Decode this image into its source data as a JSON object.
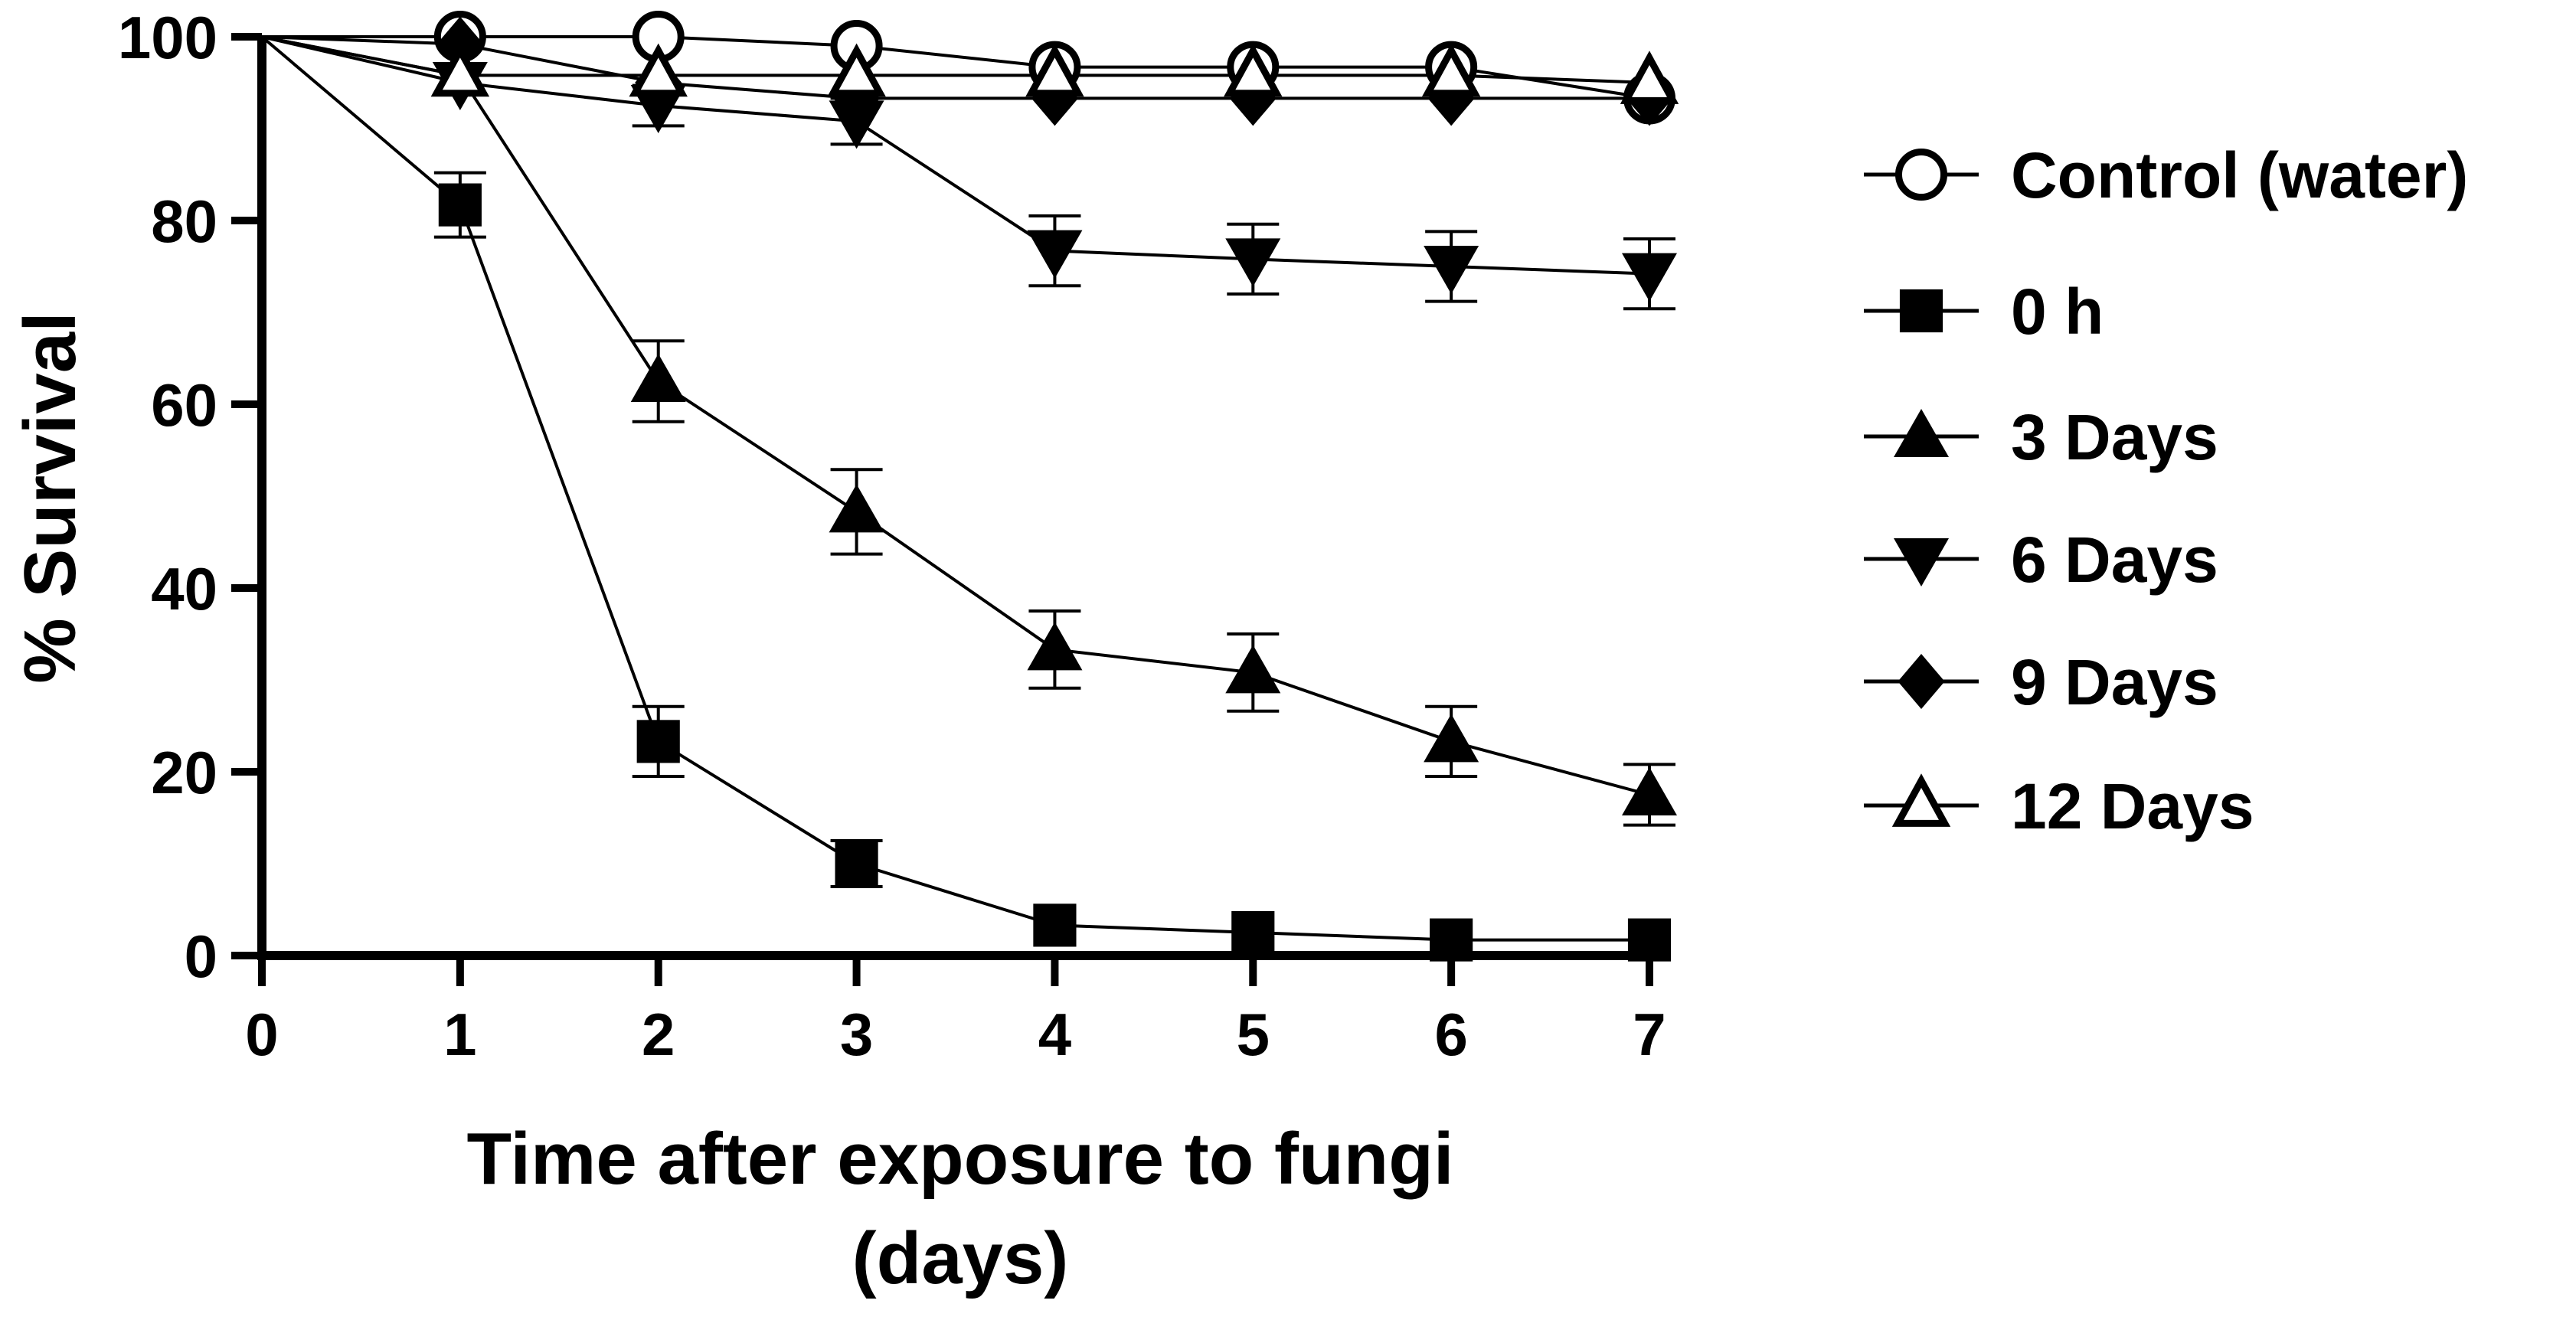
{
  "chart_data": {
    "type": "line",
    "title": "",
    "xlabel": [
      "Time after exposure to fungi",
      "(days)"
    ],
    "ylabel": "% Survival",
    "xlim": [
      0,
      7
    ],
    "ylim": [
      0,
      100
    ],
    "x_ticks": [
      "0",
      "1",
      "2",
      "3",
      "4",
      "5",
      "6",
      "7"
    ],
    "y_ticks": [
      "0",
      "20",
      "40",
      "60",
      "80",
      "100"
    ],
    "grid": false,
    "legend_position": "right",
    "x": [
      0,
      1,
      2,
      3,
      4,
      5,
      6,
      7
    ],
    "series": [
      {
        "name": "Control (water)",
        "marker": "open-circle",
        "values": [
          100,
          100,
          100,
          99,
          96.7,
          96.7,
          96.7,
          93.3
        ],
        "errors": [
          0,
          0,
          0,
          0,
          0,
          0,
          0,
          0
        ]
      },
      {
        "name": "0 h",
        "marker": "filled-square",
        "values": [
          100,
          81.7,
          23.3,
          10,
          3.3,
          2.5,
          1.7,
          1.7
        ],
        "errors": [
          0,
          3.5,
          3.8,
          2.5,
          0,
          0,
          0,
          0
        ]
      },
      {
        "name": "3 Days",
        "marker": "filled-triangle-up",
        "values": [
          100,
          95.8,
          62.5,
          48.3,
          33.3,
          30.8,
          23.3,
          17.5
        ],
        "errors": [
          0,
          0,
          4.4,
          4.6,
          4.2,
          4.2,
          3.8,
          3.3
        ]
      },
      {
        "name": "6 Days",
        "marker": "filled-triangle-down",
        "values": [
          100,
          95,
          92.5,
          90.8,
          76.7,
          75.8,
          75,
          74.2
        ],
        "errors": [
          0,
          0,
          2.2,
          2.5,
          3.8,
          3.8,
          3.8,
          3.8
        ]
      },
      {
        "name": "9 Days",
        "marker": "filled-diamond",
        "values": [
          100,
          99.2,
          95,
          93.3,
          93.3,
          93.3,
          93.3,
          93.3
        ],
        "errors": [
          0,
          0,
          0,
          0,
          0,
          0,
          0,
          0
        ]
      },
      {
        "name": "12 Days",
        "marker": "open-triangle-up",
        "values": [
          100,
          95.8,
          95.8,
          95.8,
          95.8,
          95.8,
          95.8,
          95
        ],
        "errors": [
          0,
          0,
          0,
          0,
          0,
          0,
          0,
          0
        ]
      }
    ]
  }
}
